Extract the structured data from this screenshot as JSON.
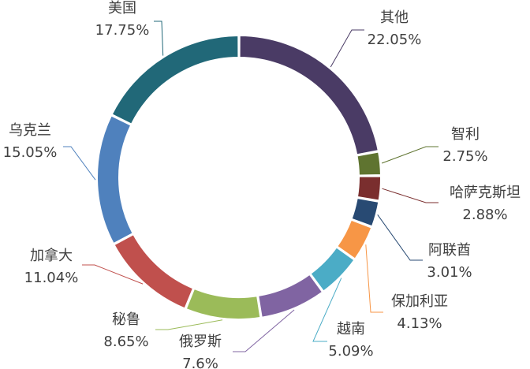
{
  "chart_data": {
    "type": "pie",
    "style": "donut",
    "title": "",
    "legend": "none",
    "slices": [
      {
        "name": "其他",
        "value": 22.05,
        "label": "22.05%",
        "color": "#4A3B65"
      },
      {
        "name": "智利",
        "value": 2.75,
        "label": "2.75%",
        "color": "#5F7430"
      },
      {
        "name": "哈萨克斯坦",
        "value": 2.88,
        "label": "2.88%",
        "color": "#7A2E2E"
      },
      {
        "name": "阿联酋",
        "value": 3.01,
        "label": "3.01%",
        "color": "#284A73"
      },
      {
        "name": "保加利亚",
        "value": 4.13,
        "label": "4.13%",
        "color": "#F79646"
      },
      {
        "name": "越南",
        "value": 5.09,
        "label": "5.09%",
        "color": "#4BACC6"
      },
      {
        "name": "俄罗斯",
        "value": 7.6,
        "label": "7.6%",
        "color": "#8064A2"
      },
      {
        "name": "秘鲁",
        "value": 8.65,
        "label": "8.65%",
        "color": "#9BBB59"
      },
      {
        "name": "加拿大",
        "value": 11.04,
        "label": "11.04%",
        "color": "#C0504D"
      },
      {
        "name": "乌克兰",
        "value": 15.05,
        "label": "15.05%",
        "color": "#4F81BD"
      },
      {
        "name": "美国",
        "value": 17.75,
        "label": "17.75%",
        "color": "#216878"
      }
    ]
  }
}
